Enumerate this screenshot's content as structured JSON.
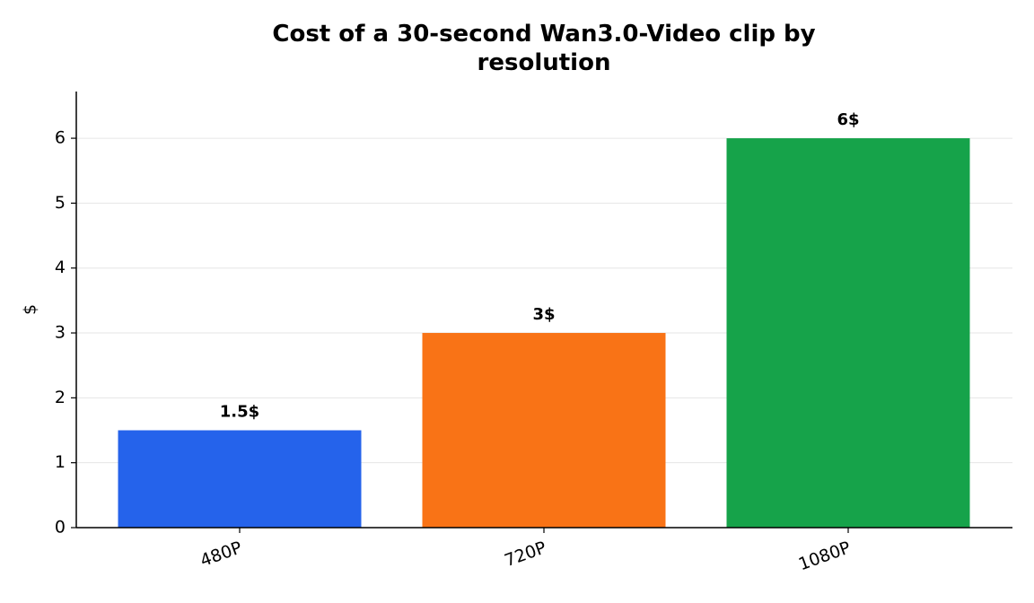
{
  "chart_data": {
    "type": "bar",
    "title": "Cost of a 30-second Wan3.0-Video clip by resolution",
    "y_label": "$",
    "categories": [
      "480P",
      "720P",
      "1080P"
    ],
    "values": [
      1.5,
      3,
      6
    ],
    "value_labels": [
      "1.5$",
      "3$",
      "6$"
    ],
    "colors": [
      "#2563eb",
      "#f97316",
      "#16a34a"
    ],
    "ylim": [
      0,
      6.72
    ],
    "yticks": [
      0,
      1,
      2,
      3,
      4,
      5,
      6
    ],
    "grid": true
  }
}
